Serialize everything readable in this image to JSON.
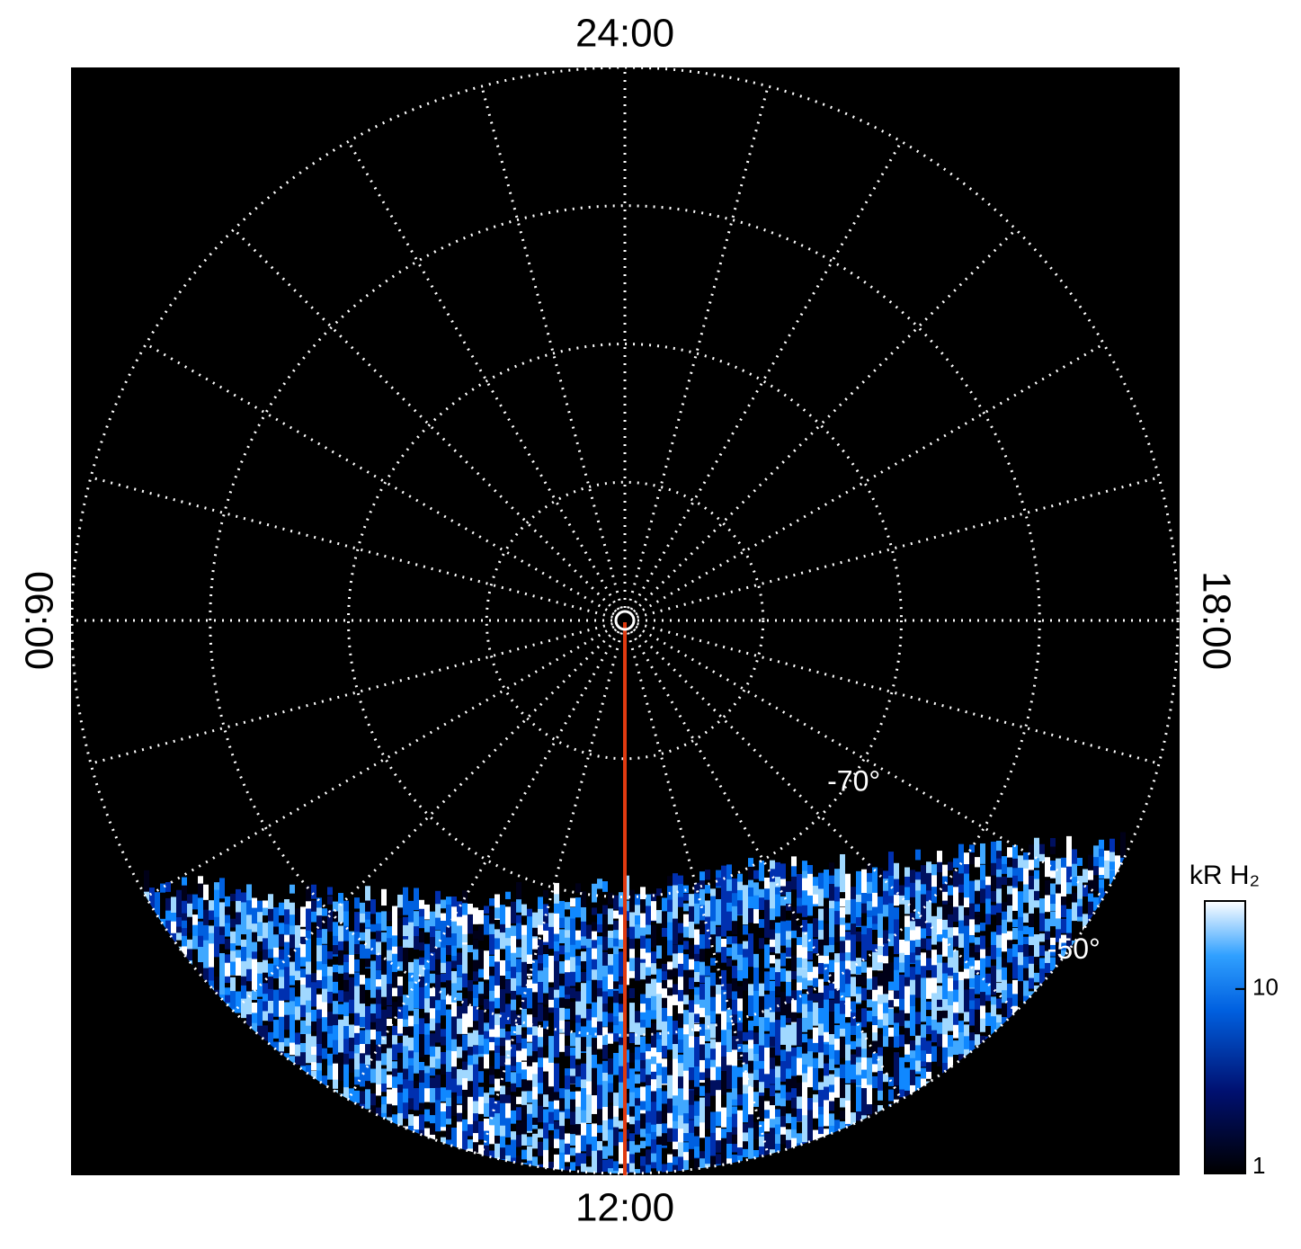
{
  "chart_data": {
    "type": "polar",
    "lt_labels": [
      "24:00",
      "06:00",
      "12:00",
      "18:00"
    ],
    "rlim": [
      -90,
      -50
    ],
    "rgrid": [
      -80,
      -70,
      -60,
      -50
    ],
    "rticks": [
      {
        "value": -70,
        "label": "-70°"
      },
      {
        "value": -50,
        "label": "-50°"
      }
    ],
    "spokes": 24,
    "colorbar": {
      "label": "kR H₂",
      "log": true,
      "lim": [
        1,
        30
      ],
      "ticks": [
        1,
        10
      ]
    }
  }
}
